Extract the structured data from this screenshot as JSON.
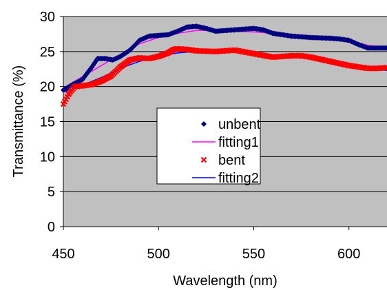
{
  "chart_data": {
    "type": "line",
    "title": "",
    "xlabel": "Wavelength (nm)",
    "ylabel": "Transmittance (%)",
    "xlim": [
      450,
      620
    ],
    "ylim": [
      0,
      30
    ],
    "x_ticks": [
      450,
      500,
      550,
      600
    ],
    "y_ticks": [
      0,
      5,
      10,
      15,
      20,
      25,
      30
    ],
    "grid": "horizontal",
    "plot_background": "#c0c0c0",
    "legend_position": "center",
    "series": [
      {
        "name": "unbent",
        "style": "markers",
        "marker": "diamond",
        "color": "#000080",
        "x": [
          450,
          455,
          460,
          465,
          468,
          472,
          476,
          480,
          485,
          490,
          495,
          500,
          505,
          510,
          515,
          520,
          525,
          530,
          540,
          550,
          555,
          560,
          570,
          580,
          590,
          595,
          600,
          605,
          610,
          615,
          620
        ],
        "y": [
          19.5,
          20.3,
          21.0,
          22.8,
          24.0,
          24.0,
          23.8,
          24.3,
          25.2,
          26.6,
          27.2,
          27.3,
          27.4,
          27.9,
          28.5,
          28.6,
          28.3,
          27.9,
          28.1,
          28.3,
          28.1,
          27.6,
          27.2,
          27.0,
          26.9,
          26.8,
          26.6,
          26.0,
          25.5,
          25.5,
          25.5
        ]
      },
      {
        "name": "fitting1",
        "style": "line",
        "color": "#ff00ff",
        "x": [
          450,
          460,
          470,
          480,
          490,
          500,
          510,
          520,
          530,
          540,
          550,
          560,
          570,
          580,
          590,
          600,
          610,
          620
        ],
        "y": [
          19.8,
          21.4,
          23.0,
          24.6,
          26.1,
          27.0,
          27.6,
          28.0,
          28.0,
          27.9,
          27.8,
          27.6,
          27.3,
          27.1,
          26.9,
          26.6,
          25.9,
          25.5
        ]
      },
      {
        "name": "bent",
        "style": "markers",
        "marker": "x",
        "color": "#ff0000",
        "x": [
          450,
          453,
          456,
          460,
          465,
          470,
          475,
          480,
          485,
          490,
          495,
          500,
          505,
          508,
          510,
          515,
          520,
          530,
          540,
          550,
          560,
          570,
          575,
          580,
          590,
          600,
          610,
          615,
          620
        ],
        "y": [
          17.5,
          19.0,
          20.0,
          20.1,
          20.3,
          20.8,
          21.5,
          22.8,
          23.8,
          24.1,
          24.0,
          24.3,
          24.8,
          25.3,
          25.4,
          25.3,
          25.1,
          25.0,
          25.2,
          24.7,
          24.2,
          24.4,
          24.4,
          24.2,
          23.6,
          23.0,
          22.6,
          22.6,
          22.7
        ]
      },
      {
        "name": "fitting2",
        "style": "line",
        "color": "#0000ff",
        "x": [
          450,
          460,
          470,
          480,
          490,
          500,
          510,
          520,
          530,
          540,
          550,
          560,
          570,
          580,
          590,
          600,
          610,
          620
        ],
        "y": [
          19.2,
          20.2,
          21.3,
          22.6,
          23.6,
          24.3,
          24.8,
          25.0,
          25.0,
          24.9,
          24.7,
          24.5,
          24.3,
          24.0,
          23.6,
          23.1,
          22.6,
          22.3
        ]
      }
    ]
  }
}
